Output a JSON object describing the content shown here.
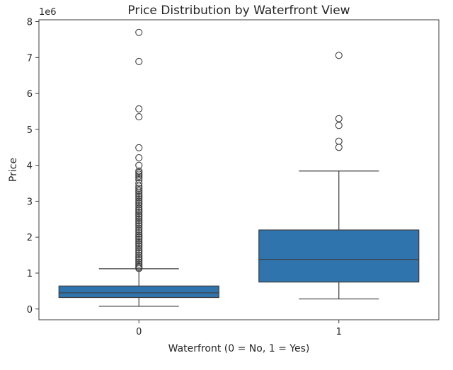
{
  "chart_data": {
    "type": "box",
    "title": "Price Distribution by Waterfront View",
    "xlabel": "Waterfront (0 = No, 1 = Yes)",
    "ylabel": "Price",
    "y_offset_label": "1e6",
    "categories": [
      "0",
      "1"
    ],
    "yticks": [
      "0",
      "1",
      "2",
      "3",
      "4",
      "5",
      "6",
      "7",
      "8"
    ],
    "ylim": [
      -0.3,
      8.05
    ],
    "grid": false,
    "box_color": "#2f74ad",
    "edge_color": "#3d3d3d",
    "boxes": [
      {
        "category": "0",
        "q1": 0.32,
        "median": 0.45,
        "q3": 0.64,
        "whisker_low": 0.075,
        "whisker_high": 1.12,
        "outliers": [
          7.7,
          6.89,
          5.57,
          5.35,
          4.49,
          4.21,
          4.0,
          3.84,
          3.8,
          3.75,
          3.7,
          3.65,
          3.6,
          3.5,
          3.42,
          3.36,
          3.3,
          3.25,
          3.2,
          3.15,
          3.1,
          3.05,
          3.0,
          2.95,
          2.9,
          2.85,
          2.8,
          2.75,
          2.7,
          2.65,
          2.6,
          2.55,
          2.5,
          2.45,
          2.4,
          2.35,
          2.3,
          2.25,
          2.2,
          2.15,
          2.1,
          2.05,
          2.0,
          1.95,
          1.9,
          1.85,
          1.8,
          1.75,
          1.7,
          1.65,
          1.6,
          1.55,
          1.5,
          1.45,
          1.4,
          1.35,
          1.3,
          1.25,
          1.2,
          1.16,
          1.13
        ]
      },
      {
        "category": "1",
        "q1": 0.75,
        "median": 1.38,
        "q3": 2.2,
        "whisker_low": 0.28,
        "whisker_high": 3.84,
        "outliers": [
          7.06,
          5.3,
          5.11,
          4.67,
          4.5
        ]
      }
    ]
  }
}
